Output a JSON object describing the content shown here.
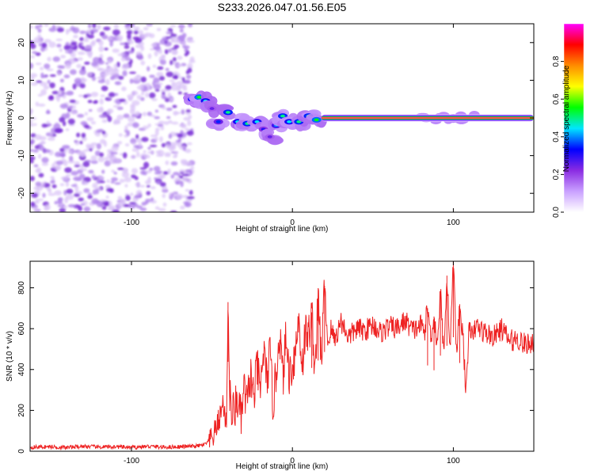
{
  "figure_title": "S233.2026.047.01.56.E05",
  "chart_data": [
    {
      "type": "heatmap",
      "title": "S233.2026.047.01.56.E05",
      "xlabel": "Height of straight line (km)",
      "ylabel": "Frequency (Hz)",
      "xlim": [
        -163,
        150
      ],
      "ylim": [
        -25,
        25
      ],
      "x_ticks": [
        -100,
        0,
        100
      ],
      "x_tick_labels": [
        "-100",
        "0",
        "100"
      ],
      "y_ticks": [
        -20,
        -10,
        0,
        10,
        20
      ],
      "y_tick_labels": [
        "-20",
        "-10",
        "0",
        "10",
        "20"
      ],
      "noise_region": {
        "x_from": -163,
        "x_to": -62,
        "typical_amplitude": 0.05
      },
      "signal_track": [
        {
          "x": -62,
          "y": 5.0,
          "amplitude": 0.45
        },
        {
          "x": -58,
          "y": 5.5,
          "amplitude": 0.55
        },
        {
          "x": -54,
          "y": 4.5,
          "amplitude": 0.45
        },
        {
          "x": -50,
          "y": 2.5,
          "amplitude": 0.25
        },
        {
          "x": -46,
          "y": -1.0,
          "amplitude": 0.35
        },
        {
          "x": -40,
          "y": 1.5,
          "amplitude": 0.5
        },
        {
          "x": -34,
          "y": -1.0,
          "amplitude": 0.45
        },
        {
          "x": -28,
          "y": -1.5,
          "amplitude": 0.5
        },
        {
          "x": -22,
          "y": -1.0,
          "amplitude": 0.45
        },
        {
          "x": -18,
          "y": -3.0,
          "amplitude": 0.3
        },
        {
          "x": -14,
          "y": -5.0,
          "amplitude": 0.25
        },
        {
          "x": -10,
          "y": -2.0,
          "amplitude": 0.4
        },
        {
          "x": -6,
          "y": 0.5,
          "amplitude": 0.5
        },
        {
          "x": -2,
          "y": -1.0,
          "amplitude": 0.45
        },
        {
          "x": 4,
          "y": -1.0,
          "amplitude": 0.5
        },
        {
          "x": 10,
          "y": 0.5,
          "amplitude": 0.5
        },
        {
          "x": 15,
          "y": -0.5,
          "amplitude": 0.55
        }
      ],
      "steady_line": {
        "x_from": 18,
        "x_to": 150,
        "y": 0,
        "amplitude": 1.0
      },
      "colorbar": {
        "label": "Normalized spectral amplitude",
        "range": [
          0,
          1
        ],
        "ticks": [
          0.0,
          0.2,
          0.4,
          0.6,
          0.8
        ],
        "tick_labels": [
          "0.0",
          "0.2",
          "0.4",
          "0.6",
          "0.8"
        ],
        "colors": [
          "#ffffff",
          "#c9a0ff",
          "#8a2be2",
          "#0000ff",
          "#00e5ff",
          "#00ff00",
          "#ffff00",
          "#ff8c00",
          "#ff0000",
          "#ff00ff"
        ]
      }
    },
    {
      "type": "line",
      "xlabel": "Height of straight line (km)",
      "ylabel": "SNR (10 * v/v)",
      "xlim": [
        -163,
        150
      ],
      "ylim": [
        0,
        930
      ],
      "x_ticks": [
        -100,
        0,
        100
      ],
      "x_tick_labels": [
        "-100",
        "0",
        "100"
      ],
      "y_ticks": [
        0,
        200,
        400,
        600,
        800
      ],
      "y_tick_labels": [
        "0",
        "200",
        "400",
        "600",
        "800"
      ],
      "color": "#ee2222",
      "series": [
        {
          "name": "SNR",
          "x": [
            -163,
            -150,
            -140,
            -130,
            -120,
            -110,
            -100,
            -90,
            -80,
            -70,
            -60,
            -55,
            -50,
            -48,
            -45,
            -43,
            -41,
            -40,
            -39,
            -38,
            -36,
            -34,
            -32,
            -30,
            -28,
            -26,
            -24,
            -22,
            -20,
            -18,
            -16,
            -14,
            -12,
            -10,
            -8,
            -6,
            -4,
            -2,
            0,
            2,
            4,
            6,
            8,
            10,
            12,
            14,
            16,
            18,
            20,
            22,
            24,
            26,
            28,
            30,
            35,
            40,
            45,
            50,
            55,
            60,
            65,
            70,
            75,
            80,
            82,
            84,
            86,
            88,
            90,
            92,
            94,
            96,
            98,
            100,
            102,
            104,
            106,
            108,
            110,
            112,
            114,
            116,
            120,
            125,
            130,
            135,
            140,
            145,
            150
          ],
          "values": [
            20,
            22,
            18,
            25,
            20,
            22,
            18,
            24,
            20,
            22,
            25,
            30,
            60,
            100,
            170,
            240,
            120,
            730,
            300,
            180,
            200,
            260,
            150,
            300,
            220,
            380,
            250,
            420,
            280,
            500,
            350,
            470,
            230,
            380,
            600,
            350,
            550,
            380,
            420,
            500,
            650,
            420,
            580,
            560,
            680,
            400,
            740,
            450,
            810,
            520,
            600,
            550,
            580,
            640,
            560,
            600,
            590,
            620,
            580,
            610,
            600,
            640,
            590,
            620,
            580,
            700,
            560,
            660,
            520,
            780,
            480,
            860,
            500,
            930,
            470,
            720,
            560,
            270,
            650,
            540,
            620,
            600,
            580,
            560,
            600,
            540,
            550,
            520,
            540
          ]
        }
      ]
    }
  ]
}
